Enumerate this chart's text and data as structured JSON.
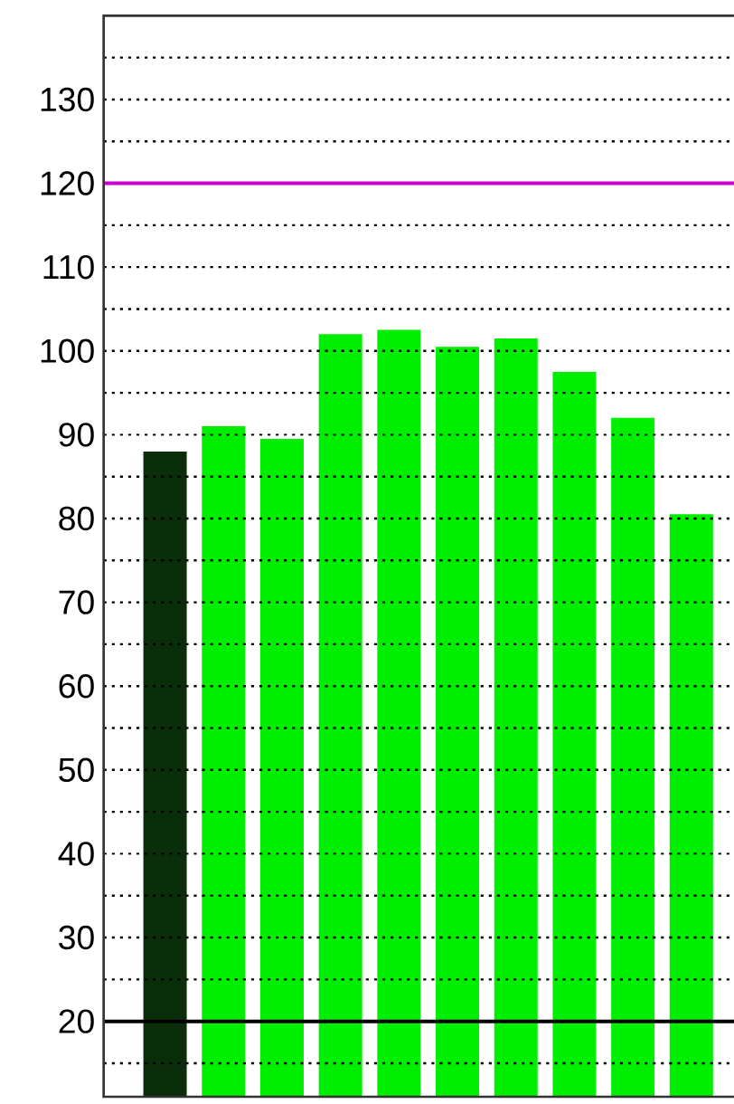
{
  "chart_data": {
    "type": "bar",
    "categories": [
      null,
      null,
      null,
      null,
      null,
      null,
      null,
      null,
      null,
      null
    ],
    "values": [
      88,
      91,
      89.5,
      102,
      102.5,
      100.5,
      101.5,
      97.5,
      92,
      80.5
    ],
    "colors": [
      "#0a2e0a",
      "#00ee00",
      "#00ee00",
      "#00ee00",
      "#00ee00",
      "#00ee00",
      "#00ee00",
      "#00ee00",
      "#00ee00",
      "#00ee00"
    ],
    "ylim": [
      11,
      140
    ],
    "yticks": [
      {
        "value": 15,
        "label": null
      },
      20,
      {
        "value": 25,
        "label": null
      },
      30,
      {
        "value": 35,
        "label": null
      },
      40,
      {
        "value": 45,
        "label": null
      },
      50,
      {
        "value": 55,
        "label": null
      },
      60,
      {
        "value": 65,
        "label": null
      },
      70,
      {
        "value": 75,
        "label": null
      },
      80,
      {
        "value": 85,
        "label": null
      },
      90,
      {
        "value": 95,
        "label": null
      },
      100,
      {
        "value": 105,
        "label": null
      },
      110,
      {
        "value": 115,
        "label": null
      },
      120,
      {
        "value": 125,
        "label": null
      },
      130,
      {
        "value": 135,
        "label": null
      }
    ],
    "grid": "y",
    "ref_lines": [
      {
        "axis": "y",
        "value": 120,
        "color": "#cc00cc"
      },
      {
        "axis": "y",
        "value": 20,
        "color": "#000000"
      }
    ]
  }
}
